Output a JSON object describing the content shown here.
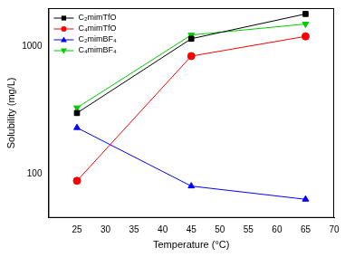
{
  "chart_data": {
    "type": "line",
    "x_label": "Temperature (°C)",
    "y_label": "Solubility (mg/L)",
    "x": [
      25,
      45,
      65
    ],
    "series": [
      {
        "name": "C₂mimTfO",
        "color": "#000000",
        "marker": "square",
        "values": [
          300,
          1150,
          1800
        ]
      },
      {
        "name": "C₄mimTfO",
        "color": "#ff0000",
        "marker": "circle",
        "values": [
          88,
          840,
          1200
        ]
      },
      {
        "name": "C₂mimBF₄",
        "color": "#0000ff",
        "marker": "triangle",
        "values": [
          230,
          80,
          63
        ]
      },
      {
        "name": "C₄mimBF₄",
        "color": "#00cc00",
        "marker": "triangle_down",
        "values": [
          330,
          1230,
          1500
        ]
      }
    ],
    "xlim": [
      20,
      70
    ],
    "xticks": [
      25,
      30,
      35,
      40,
      45,
      50,
      55,
      60,
      65,
      70
    ],
    "ylim": [
      45,
      2000
    ],
    "yticks": [
      100,
      1000
    ],
    "log": "y",
    "grid": false,
    "legend": "top-left"
  }
}
